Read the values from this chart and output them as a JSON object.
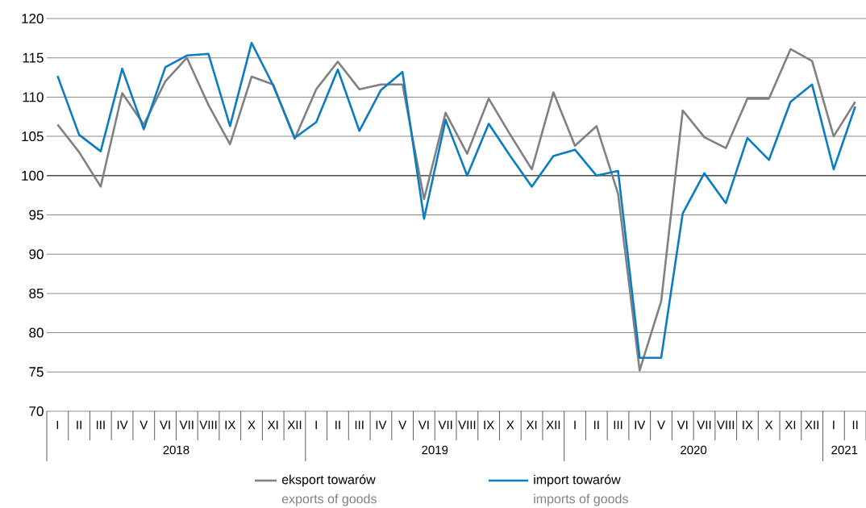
{
  "chart_data": {
    "type": "line",
    "categories": [
      "I",
      "II",
      "III",
      "IV",
      "V",
      "VI",
      "VII",
      "VIII",
      "IX",
      "X",
      "XI",
      "XII",
      "I",
      "II",
      "III",
      "IV",
      "V",
      "VI",
      "VII",
      "VIII",
      "IX",
      "X",
      "XI",
      "XII",
      "I",
      "II",
      "III",
      "IV",
      "V",
      "VI",
      "VII",
      "VIII",
      "IX",
      "X",
      "XI",
      "XII",
      "I",
      "II"
    ],
    "series": [
      {
        "name": "eksport towarów",
        "color": "#808080",
        "values": [
          106.5,
          103,
          98.6,
          110.5,
          106.5,
          112,
          115,
          109,
          104,
          112.6,
          111.6,
          104.7,
          111,
          114.5,
          111,
          111.6,
          111.6,
          97,
          108,
          102.8,
          109.8,
          105.2,
          100.8,
          110.6,
          103.8,
          106.3,
          97.7,
          75.2,
          84,
          108.3,
          104.9,
          103.5,
          109.8,
          109.8,
          116.1,
          114.6,
          105,
          109.4
        ]
      },
      {
        "name": "import towarów",
        "color": "#0a7cc1",
        "values": [
          112.7,
          105.2,
          103.1,
          113.6,
          105.9,
          113.8,
          115.3,
          115.5,
          106.3,
          116.9,
          111.5,
          104.8,
          106.8,
          113.5,
          105.7,
          110.9,
          113.2,
          94.5,
          107.1,
          100,
          106.6,
          102.5,
          98.6,
          102.5,
          103.3,
          100,
          100.6,
          76.8,
          76.8,
          95.2,
          100.3,
          96.5,
          104.8,
          102,
          109.4,
          111.6,
          100.8,
          108.8
        ]
      }
    ],
    "annotations": [
      "2018",
      "2019",
      "2020",
      "2021",
      "exports of goods",
      "imports of goods"
    ],
    "ylim": [
      70,
      120
    ],
    "yticks": [
      70,
      75,
      80,
      85,
      90,
      95,
      100,
      105,
      110,
      115,
      120
    ],
    "ref_lines": [
      {
        "axis": "y",
        "value": 100
      }
    ],
    "grid": "y",
    "legend": "bottom",
    "marker": "none",
    "line_style": "solid"
  }
}
